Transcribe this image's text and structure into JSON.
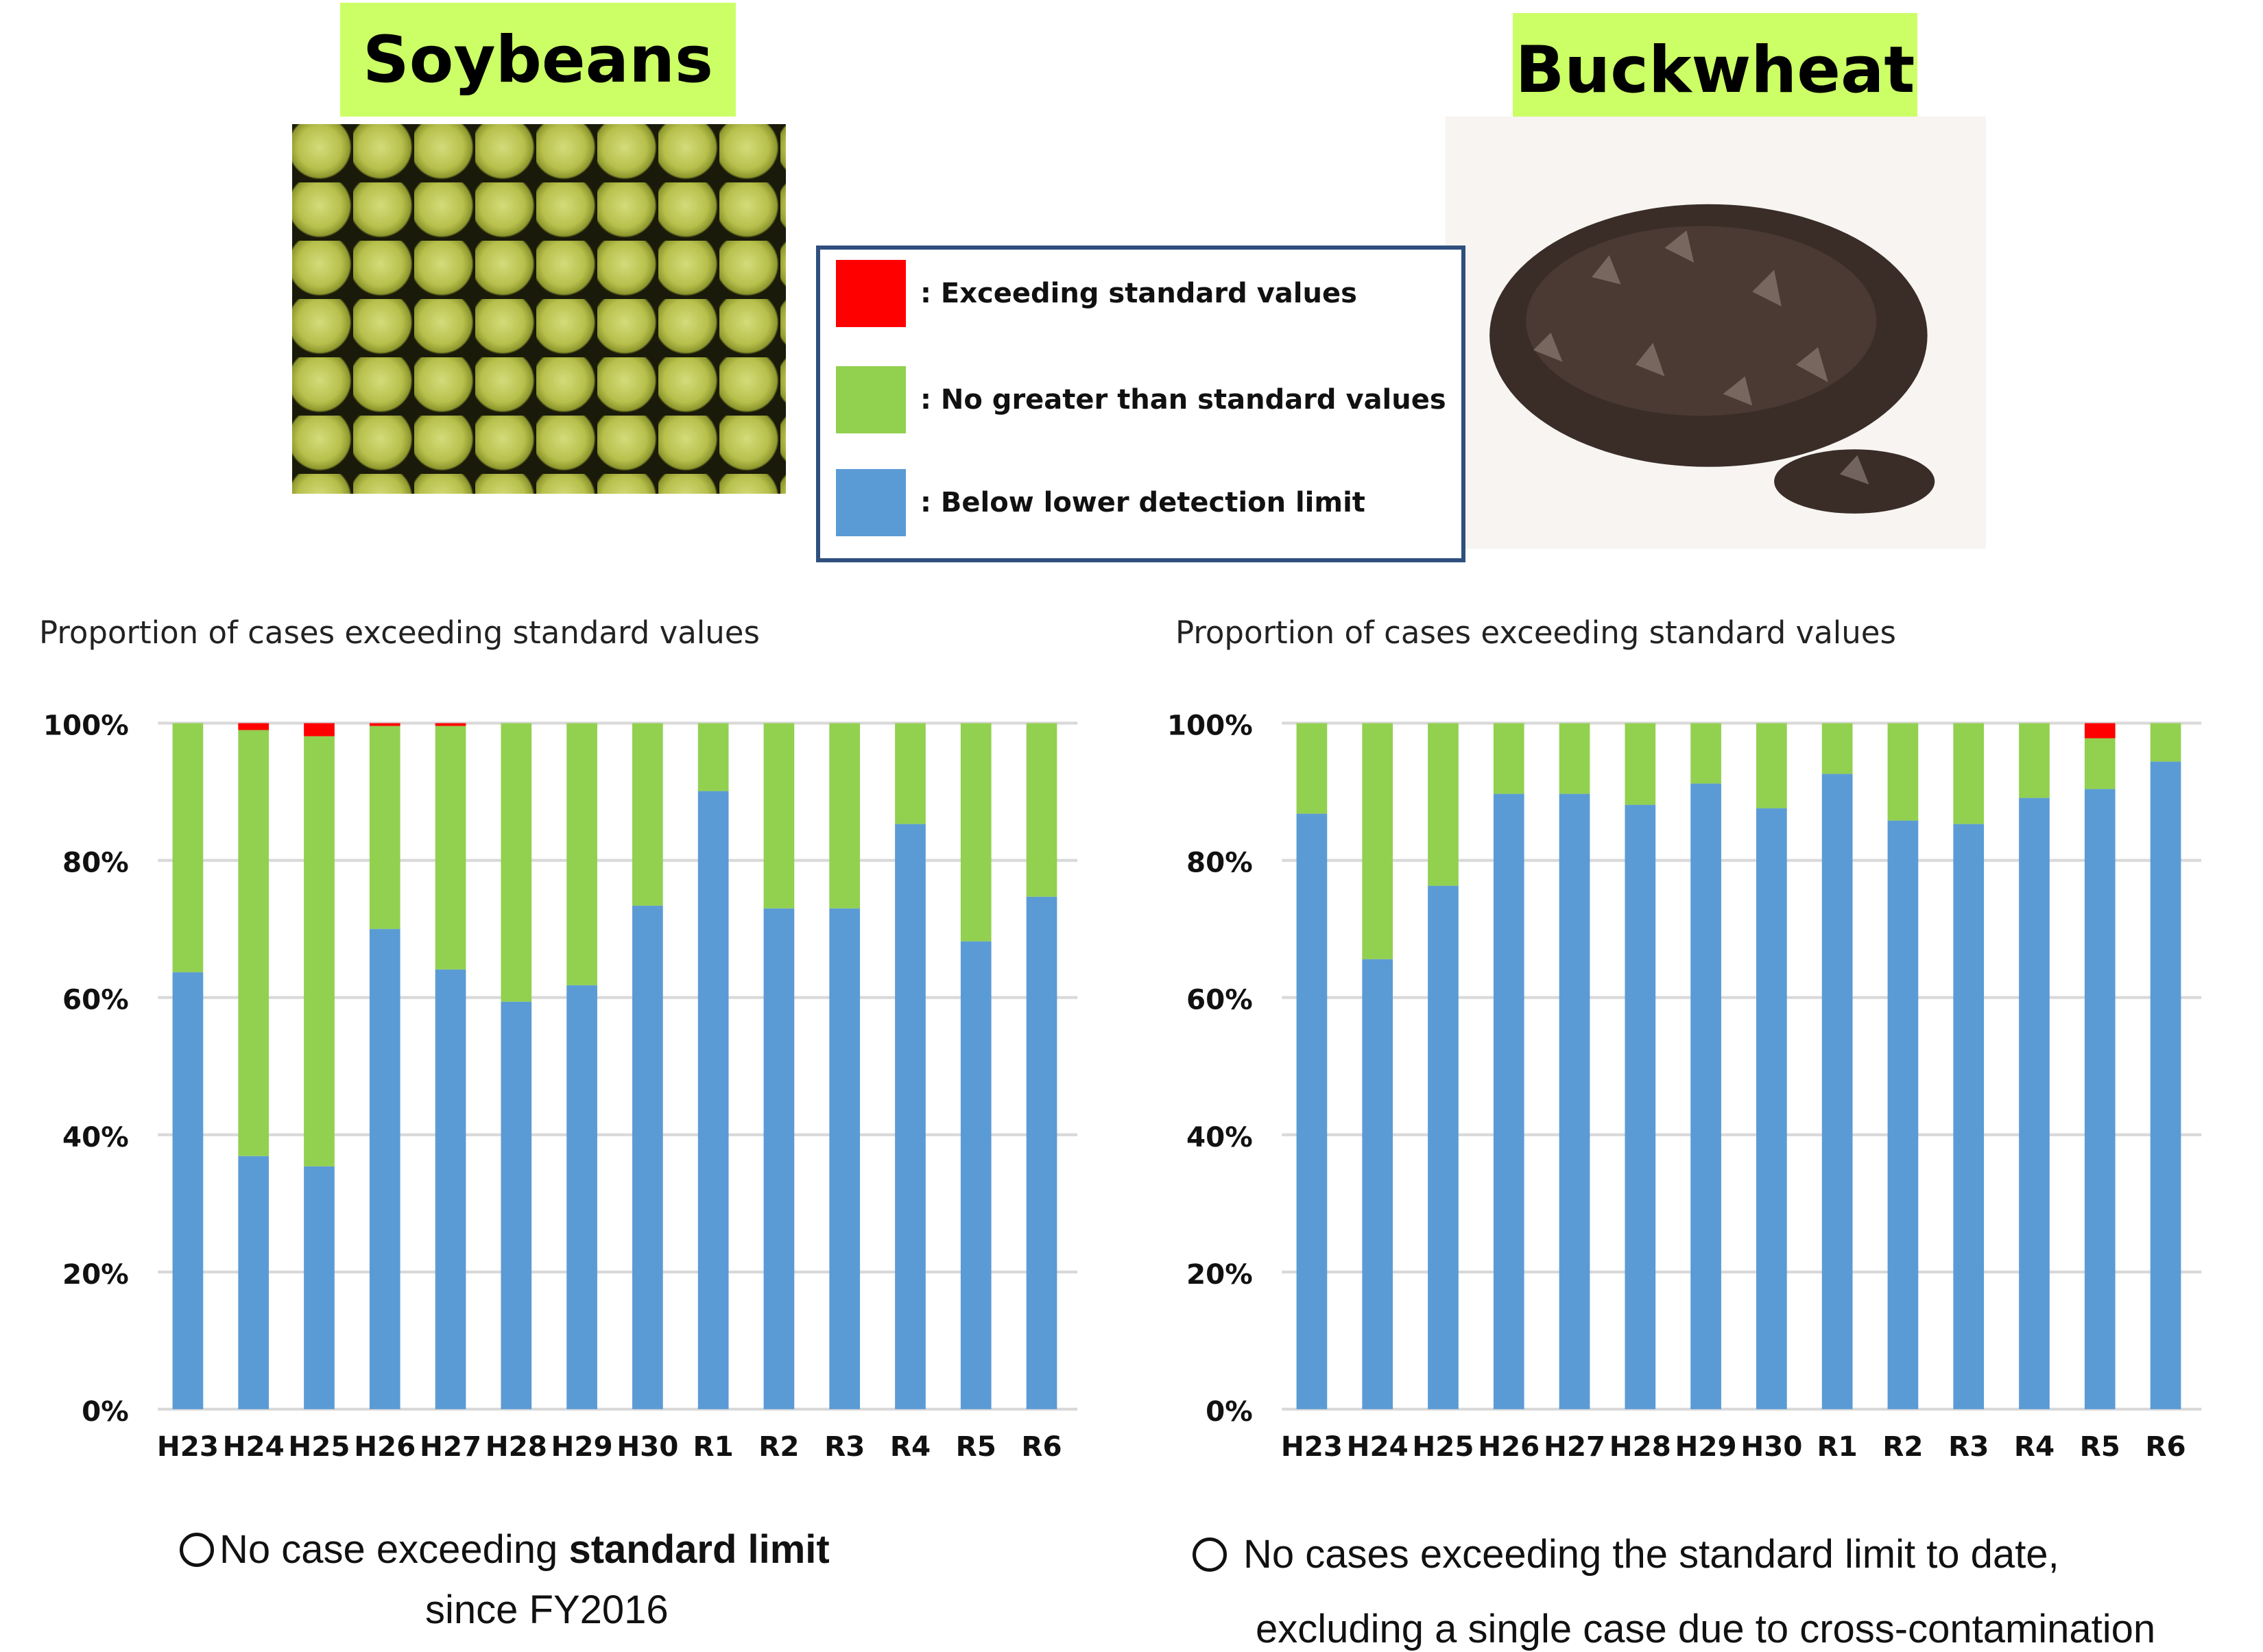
{
  "colors": {
    "exceeding": "#ff0000",
    "no_greater": "#92d050",
    "below": "#5b9bd5",
    "title_bg": "#ccff66",
    "legend_border": "#2f4f7f"
  },
  "soybeans": {
    "title": "Soybeans"
  },
  "buckwheat": {
    "title": "Buckwheat"
  },
  "legend": {
    "items": [
      {
        "label": ": Exceeding standard values",
        "color": "#ff0000"
      },
      {
        "label": ": No greater than standard values",
        "color": "#92d050"
      },
      {
        "label": ": Below lower detection limit",
        "color": "#5b9bd5"
      }
    ]
  },
  "chart_data": [
    {
      "type": "bar",
      "stacked": true,
      "title": "Proportion of cases exceeding standard values",
      "categories": [
        "H23",
        "H24",
        "H25",
        "H26",
        "H27",
        "H28",
        "H29",
        "H30",
        "R1",
        "R2",
        "R3",
        "R4",
        "R5",
        "R6"
      ],
      "series": [
        {
          "name": "Below lower detection limit",
          "color": "#5b9bd5",
          "values": [
            63.7,
            36.9,
            35.4,
            70.0,
            64.1,
            59.4,
            61.8,
            73.4,
            90.1,
            73.0,
            73.0,
            85.3,
            68.2,
            74.7
          ]
        },
        {
          "name": "No greater than standard values",
          "color": "#92d050",
          "values": [
            36.3,
            62.1,
            62.7,
            29.6,
            35.5,
            40.6,
            38.2,
            26.6,
            9.9,
            27.0,
            27.0,
            14.7,
            31.8,
            25.3
          ]
        },
        {
          "name": "Exceeding standard values",
          "color": "#ff0000",
          "values": [
            0,
            1.0,
            1.9,
            0.4,
            0.4,
            0,
            0,
            0,
            0,
            0,
            0,
            0,
            0,
            0
          ]
        }
      ],
      "yticks": [
        "0%",
        "20%",
        "40%",
        "60%",
        "80%",
        "100%"
      ],
      "ylim": [
        0,
        100
      ],
      "grid": true
    },
    {
      "type": "bar",
      "stacked": true,
      "title": "Proportion of cases exceeding standard values",
      "categories": [
        "H23",
        "H24",
        "H25",
        "H26",
        "H27",
        "H28",
        "H29",
        "H30",
        "R1",
        "R2",
        "R3",
        "R4",
        "R5",
        "R6"
      ],
      "series": [
        {
          "name": "Below lower detection limit",
          "color": "#5b9bd5",
          "values": [
            86.8,
            65.6,
            76.3,
            89.7,
            89.7,
            88.1,
            91.2,
            87.6,
            92.6,
            85.8,
            85.3,
            89.1,
            90.4,
            94.4
          ]
        },
        {
          "name": "No greater than standard values",
          "color": "#92d050",
          "values": [
            13.2,
            34.4,
            23.7,
            10.3,
            10.3,
            11.9,
            8.8,
            12.4,
            7.4,
            14.2,
            14.7,
            10.9,
            7.4,
            5.6
          ]
        },
        {
          "name": "Exceeding standard values",
          "color": "#ff0000",
          "values": [
            0,
            0,
            0,
            0,
            0,
            0,
            0,
            0,
            0,
            0,
            0,
            0,
            2.2,
            0
          ]
        }
      ],
      "yticks": [
        "0%",
        "20%",
        "40%",
        "60%",
        "80%",
        "100%"
      ],
      "ylim": [
        0,
        100
      ],
      "grid": true
    }
  ],
  "notes": {
    "left": {
      "line1_a": "No case exceeding ",
      "line1_b": "standard limit",
      "line2": "since FY2016"
    },
    "right": {
      "line1": "No cases exceeding the standard limit to date,",
      "line2": "excluding a single case due to cross-contamination"
    }
  }
}
